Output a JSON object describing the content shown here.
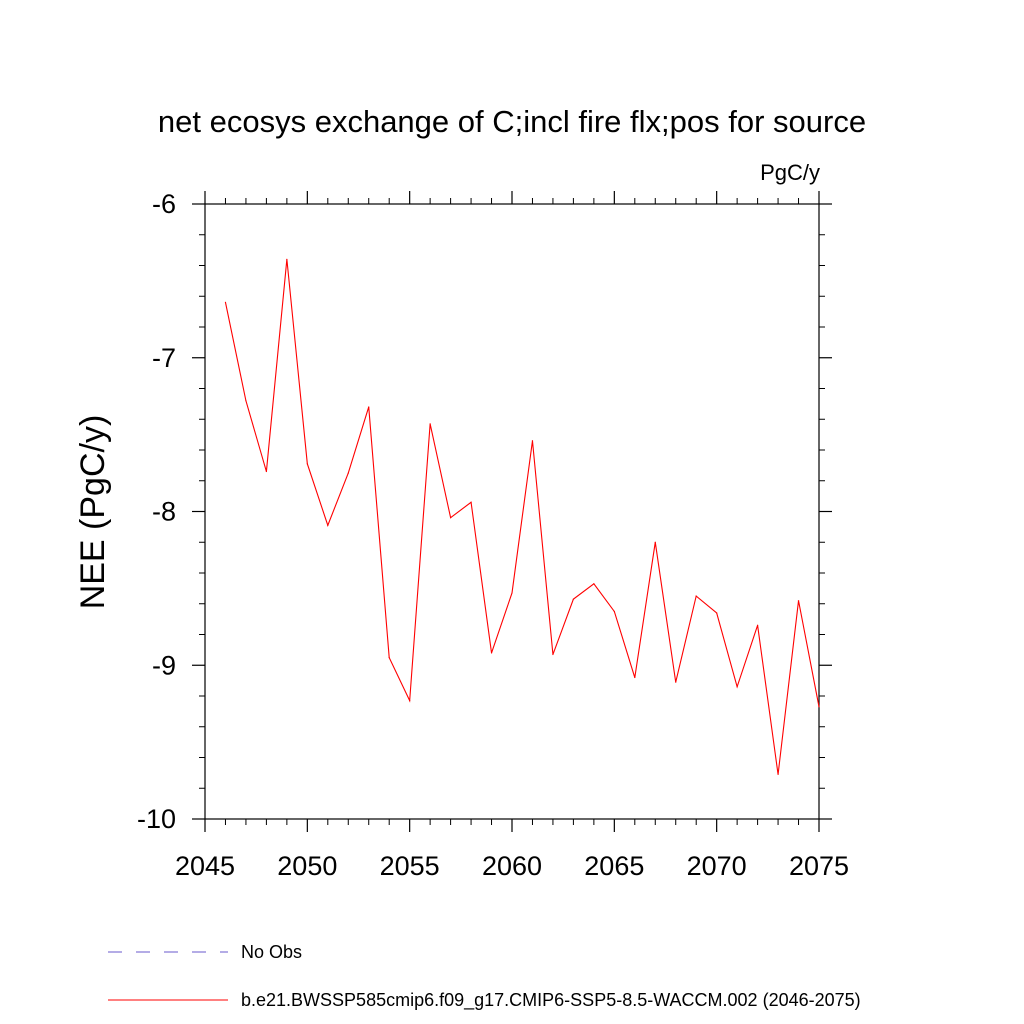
{
  "chart_data": {
    "type": "line",
    "title": "net ecosys exchange of C;incl fire flx;pos for source",
    "units_label": "PgC/y",
    "ylabel": "NEE  (PgC/y)",
    "xlabel": "",
    "xlim": [
      2045,
      2075
    ],
    "ylim": [
      -10,
      -6
    ],
    "x_ticks": [
      2045,
      2050,
      2055,
      2060,
      2065,
      2070,
      2075
    ],
    "x_tick_labels": [
      "2045",
      "2050",
      "2055",
      "2060",
      "2065",
      "2070",
      "2075"
    ],
    "y_ticks": [
      -10,
      -9,
      -8,
      -7,
      -6
    ],
    "y_tick_labels": [
      "-10",
      "-9",
      "-8",
      "-7",
      "-6"
    ],
    "grid": false,
    "series": [
      {
        "name": "b.e21.BWSSP585cmip6.f09_g17.CMIP6-SSP5-8.5-WACCM.002 (2046-2075)",
        "color": "#ff0000",
        "x": [
          2046,
          2047,
          2048,
          2049,
          2050,
          2051,
          2052,
          2053,
          2054,
          2055,
          2056,
          2057,
          2058,
          2059,
          2060,
          2061,
          2062,
          2063,
          2064,
          2065,
          2066,
          2067,
          2068,
          2069,
          2070,
          2071,
          2072,
          2073,
          2074,
          2075
        ],
        "y": [
          -6.64,
          -7.28,
          -7.74,
          -6.36,
          -7.69,
          -8.09,
          -7.75,
          -7.32,
          -8.95,
          -9.23,
          -7.43,
          -8.04,
          -7.94,
          -8.92,
          -8.53,
          -7.54,
          -8.93,
          -8.57,
          -8.47,
          -8.65,
          -9.08,
          -8.2,
          -9.11,
          -8.55,
          -8.66,
          -9.14,
          -8.74,
          -9.71,
          -8.58,
          -9.27
        ]
      }
    ],
    "legend": [
      {
        "label": "No Obs",
        "color": "#6a5acd",
        "style": "dashed"
      },
      {
        "label": "b.e21.BWSSP585cmip6.f09_g17.CMIP6-SSP5-8.5-WACCM.002 (2046-2075)",
        "color": "#ff0000",
        "style": "solid"
      }
    ]
  }
}
